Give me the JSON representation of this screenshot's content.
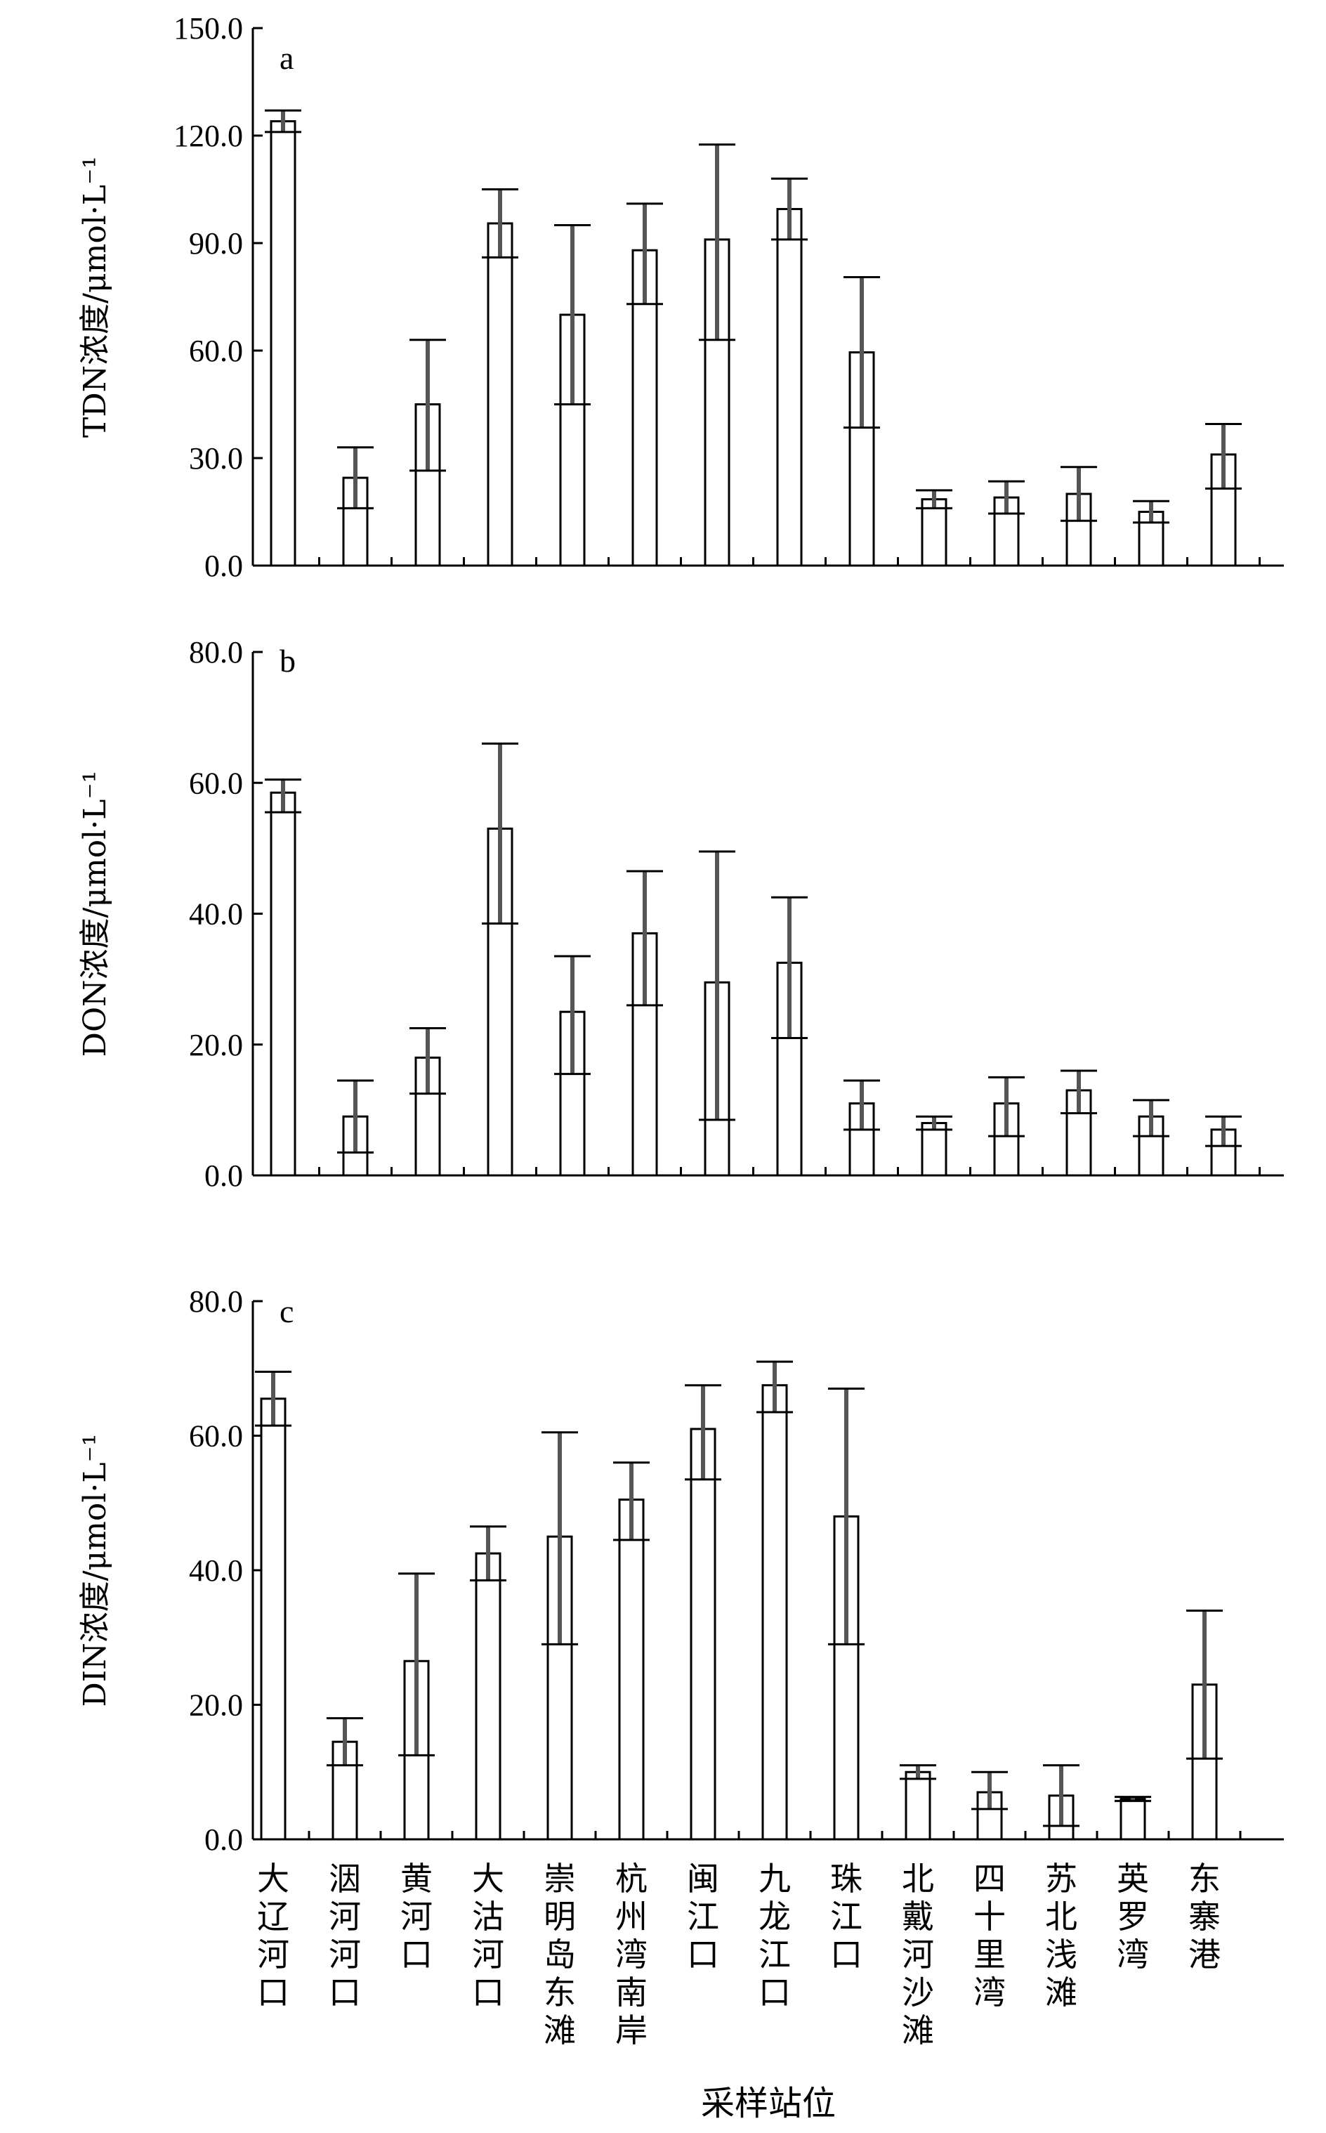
{
  "categories": [
    "大辽河口",
    "洇河河口",
    "黄河口",
    "大沽河口",
    "崇明岛东滩",
    "杭州湾南岸",
    "闽江口",
    "九龙江口",
    "珠江口",
    "北戴河沙滩",
    "四十里湾",
    "苏北浅滩",
    "英罗湾",
    "东寨港"
  ],
  "xlabel": "采样站位",
  "chart_data": [
    {
      "type": "bar",
      "panel": "a",
      "ylabel": "TDN浓度/μmol·L⁻¹",
      "ylim": [
        0,
        150
      ],
      "yticks": [
        "0.0",
        "30.0",
        "60.0",
        "90.0",
        "120.0",
        "150.0"
      ],
      "ytick_values": [
        0,
        30,
        60,
        90,
        120,
        150
      ],
      "values": [
        124,
        24.5,
        45,
        95.5,
        70,
        88,
        91,
        99.5,
        59.5,
        18.5,
        19,
        20,
        15,
        31
      ],
      "err_high": [
        127,
        33,
        63,
        105,
        95,
        101,
        117.5,
        108,
        80.5,
        21,
        23.5,
        27.5,
        18,
        39.5
      ],
      "err_low": [
        121,
        16,
        26.5,
        86,
        45,
        73,
        63,
        91,
        38.5,
        16,
        14.5,
        12.5,
        12,
        21.5
      ]
    },
    {
      "type": "bar",
      "panel": "b",
      "ylabel": "DON浓度/μmol·L⁻¹",
      "ylim": [
        0,
        80
      ],
      "yticks": [
        "0.0",
        "20.0",
        "40.0",
        "60.0",
        "80.0"
      ],
      "ytick_values": [
        0,
        20,
        40,
        60,
        80
      ],
      "values": [
        58.5,
        9,
        18,
        53,
        25,
        37,
        29.5,
        32.5,
        11,
        8,
        11,
        13,
        9,
        7
      ],
      "err_high": [
        60.5,
        14.5,
        22.5,
        66,
        33.5,
        46.5,
        49.5,
        42.5,
        14.5,
        9,
        15,
        16,
        11.5,
        9
      ],
      "err_low": [
        55.5,
        3.5,
        12.5,
        38.5,
        15.5,
        26,
        8.5,
        21,
        7,
        7,
        6,
        9.5,
        6,
        4.5
      ]
    },
    {
      "type": "bar",
      "panel": "c",
      "ylabel": "DIN浓度/μmol·L⁻¹",
      "ylim": [
        0,
        80
      ],
      "yticks": [
        "0.0",
        "20.0",
        "40.0",
        "60.0",
        "80.0"
      ],
      "ytick_values": [
        0,
        20,
        40,
        60,
        80
      ],
      "values": [
        65.5,
        14.5,
        26.5,
        42.5,
        45,
        50.5,
        61,
        67.5,
        48,
        10,
        7,
        6.5,
        6,
        23
      ],
      "err_high": [
        69.5,
        18,
        39.5,
        46.5,
        60.5,
        56,
        67.5,
        71,
        67,
        11,
        10,
        11,
        6.3,
        34
      ],
      "err_low": [
        61.5,
        11,
        12.5,
        38.5,
        29,
        44.5,
        53.5,
        63.5,
        29,
        9,
        4.5,
        2,
        5.7,
        12
      ]
    }
  ]
}
